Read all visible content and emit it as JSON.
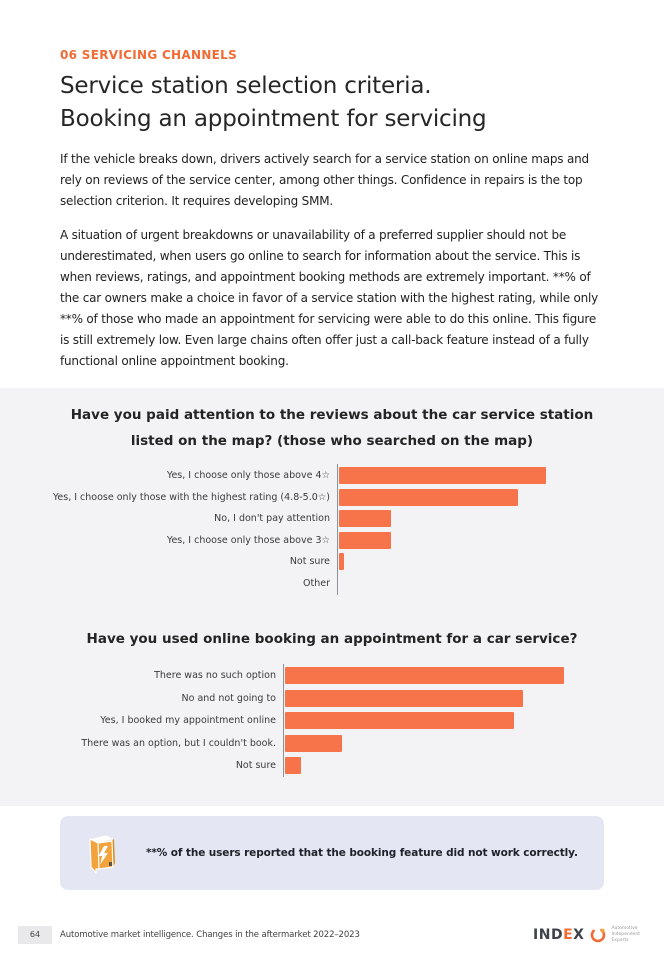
{
  "page": {
    "eyebrow": "06 SERVICING CHANNELS",
    "title_line1": "Service station selection criteria.",
    "title_line2": "Booking an appointment for servicing",
    "paragraph1": "If the vehicle breaks down, drivers actively search for a service station on online maps and rely on reviews of the service center, among other things. Confidence in repairs is the top selection criterion. It requires developing SMM.",
    "paragraph2": "A situation of urgent breakdowns or unavailability of a preferred supplier should not be underestimated, when users go online to search for information about the service. This is when reviews, ratings, and appointment booking methods are extremely important. **% of the car owners make a choice in favor of a service station with the highest rating, while only **% of those who made an appointment for servicing were able to do this online. This figure is still extremely low. Even large chains often offer just a call-back feature instead of a fully functional online appointment booking."
  },
  "chart_data": [
    {
      "type": "bar",
      "orientation": "horizontal",
      "title": "Have you paid attention to the reviews about the car service station listed on the map? (those who searched on the map)",
      "categories": [
        "Yes, I choose only those above 4☆",
        "Yes, I choose only those with the highest rating (4.8-5.0☆)",
        "No, I don't pay attention",
        "Yes, I choose only those above 3☆",
        "Not sure",
        "Other"
      ],
      "values": [
        44,
        38,
        11,
        11,
        1,
        0
      ],
      "unit": "%",
      "xlim": [
        0,
        48
      ],
      "bar_color": "#F7744A",
      "grid": false,
      "legend": false,
      "data_labels": false
    },
    {
      "type": "bar",
      "orientation": "horizontal",
      "title": "Have you used online booking an appointment for a car service?",
      "categories": [
        "There was no such option",
        "No and not going to",
        "Yes, I booked my appointment online",
        "There was an option, but I couldn't book.",
        "Not sure"
      ],
      "values": [
        34,
        29,
        28,
        7,
        2
      ],
      "unit": "%",
      "xlim": [
        0,
        36
      ],
      "bar_color": "#F7744A",
      "grid": false,
      "legend": false,
      "data_labels": false
    }
  ],
  "callout": {
    "icon": "lightning-note-icon",
    "text": "**% of the users reported that the booking feature did not work correctly.",
    "background": "#E4E7F3"
  },
  "footer": {
    "page_number": "64",
    "source": "Automotive market intelligence. Changes in the aftermarket 2022–2023",
    "logo_dark1": "IND",
    "logo_accent": "E",
    "logo_dark2": "X",
    "tagline": [
      "Automotive",
      "Independent",
      "Experts"
    ]
  },
  "colors": {
    "accent_orange": "#F26B35",
    "bar_orange": "#F7744A",
    "band_background": "#F3F3F5",
    "callout_background": "#E4E7F3",
    "heading_text": "#262626",
    "body_text": "#1F1F1F",
    "axis_line": "#8E939B"
  }
}
